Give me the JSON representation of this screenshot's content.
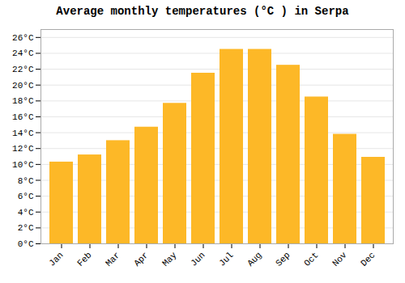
{
  "chart_data": {
    "type": "bar",
    "title": "Average monthly temperatures (°C ) in Serpa",
    "categories": [
      "Jan",
      "Feb",
      "Mar",
      "Apr",
      "May",
      "Jun",
      "Jul",
      "Aug",
      "Sep",
      "Oct",
      "Nov",
      "Dec"
    ],
    "values": [
      10.3,
      11.2,
      13.0,
      14.7,
      17.7,
      21.5,
      24.5,
      24.5,
      22.5,
      18.5,
      13.8,
      10.9
    ],
    "color": "#FDB827",
    "ylim": [
      0,
      27
    ],
    "yticks": [
      {
        "value": 0,
        "label": "0°C"
      },
      {
        "value": 2,
        "label": "2°C"
      },
      {
        "value": 4,
        "label": "4°C"
      },
      {
        "value": 6,
        "label": "6°C"
      },
      {
        "value": 8,
        "label": "8°C"
      },
      {
        "value": 10,
        "label": "10°C"
      },
      {
        "value": 12,
        "label": "12°C"
      },
      {
        "value": 14,
        "label": "14°C"
      },
      {
        "value": 16,
        "label": "16°C"
      },
      {
        "value": 18,
        "label": "18°C"
      },
      {
        "value": 20,
        "label": "20°C"
      },
      {
        "value": 22,
        "label": "22°C"
      },
      {
        "value": 24,
        "label": "24°C"
      },
      {
        "value": 26,
        "label": "26°C"
      }
    ],
    "grid": true
  }
}
